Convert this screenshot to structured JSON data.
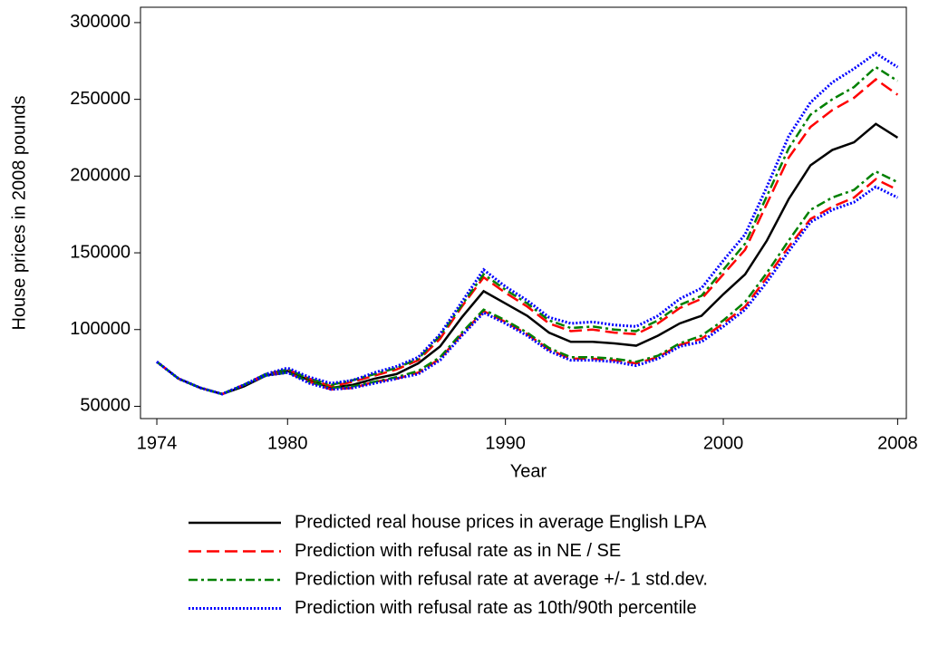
{
  "chart_data": {
    "type": "line",
    "xlabel": "Year",
    "ylabel": "House prices in 2008 pounds",
    "x": [
      1974,
      1975,
      1976,
      1977,
      1978,
      1979,
      1980,
      1981,
      1982,
      1983,
      1984,
      1985,
      1986,
      1987,
      1988,
      1989,
      1990,
      1991,
      1992,
      1993,
      1994,
      1995,
      1996,
      1997,
      1998,
      1999,
      2000,
      2001,
      2002,
      2003,
      2004,
      2005,
      2006,
      2007,
      2008
    ],
    "xlim": [
      1973.25,
      2008.4
    ],
    "xticks": [
      1974,
      1980,
      1990,
      2000,
      2008
    ],
    "ylim": [
      42000,
      310000
    ],
    "yticks": [
      50000,
      100000,
      150000,
      200000,
      250000,
      300000
    ],
    "series": [
      {
        "name": "Predicted real house prices in average English LPA",
        "color": "#000000",
        "dash": "none",
        "values": [
          79000,
          68000,
          62000,
          58000,
          63000,
          70000,
          73000,
          67000,
          62000,
          64000,
          68000,
          71000,
          78000,
          89000,
          108000,
          125000,
          117000,
          109000,
          98000,
          92000,
          92000,
          91000,
          89500,
          96000,
          104000,
          109000,
          123000,
          136000,
          158000,
          185000,
          207000,
          217000,
          222000,
          234000,
          225000
        ]
      },
      {
        "name": "Prediction with refusal rate as in NE / SE",
        "color": "#ff0000",
        "dash": "14,6",
        "upper": [
          79000,
          68000,
          62000,
          58000,
          64000,
          71000,
          74000,
          68000,
          63000,
          66000,
          70000,
          74000,
          80000,
          94000,
          115000,
          134000,
          124000,
          115000,
          104000,
          99000,
          100000,
          98000,
          97000,
          104000,
          114000,
          120000,
          136000,
          152000,
          182000,
          212000,
          232000,
          243000,
          251000,
          263000,
          253000
        ],
        "lower": [
          79000,
          68000,
          62000,
          58000,
          64000,
          70000,
          72000,
          66000,
          61000,
          62000,
          66000,
          68000,
          72000,
          81000,
          97000,
          112000,
          105000,
          97000,
          87000,
          81000,
          81000,
          80000,
          78000,
          82000,
          90000,
          94000,
          104000,
          115000,
          134000,
          154000,
          172000,
          180000,
          186000,
          198000,
          191000
        ]
      },
      {
        "name": "Prediction with refusal rate at average +/- 1 std.dev.",
        "color": "#008000",
        "dash": "10,4,3,4",
        "upper": [
          79000,
          68000,
          62000,
          58000,
          64000,
          71000,
          74000,
          68000,
          64000,
          67000,
          71000,
          75000,
          81000,
          96000,
          116000,
          136000,
          126000,
          117000,
          106000,
          101000,
          102000,
          100000,
          99000,
          106000,
          116000,
          122000,
          139000,
          156000,
          187000,
          218000,
          240000,
          250000,
          258000,
          271000,
          262000
        ],
        "lower": [
          79000,
          68000,
          62000,
          58000,
          64000,
          70000,
          72000,
          66000,
          62000,
          63000,
          66000,
          69000,
          73000,
          82000,
          98000,
          113000,
          106000,
          98000,
          88000,
          82000,
          82000,
          81000,
          79000,
          83000,
          91000,
          96000,
          106000,
          118000,
          137000,
          158000,
          178000,
          186000,
          191000,
          203000,
          196000
        ]
      },
      {
        "name": "Prediction with refusal rate as 10th/90th percentile",
        "color": "#0000ff",
        "dash": "2,2",
        "upper": [
          79000,
          68000,
          62000,
          58000,
          64000,
          71000,
          75000,
          69000,
          65000,
          67000,
          72000,
          76000,
          82000,
          97000,
          118000,
          139000,
          128000,
          119000,
          108000,
          104000,
          105000,
          103000,
          102000,
          109000,
          120000,
          127000,
          145000,
          162000,
          193000,
          226000,
          248000,
          261000,
          270000,
          280000,
          271000
        ],
        "lower": [
          79000,
          68000,
          62000,
          58000,
          64000,
          70000,
          72000,
          65000,
          61000,
          62000,
          65000,
          68000,
          71000,
          80000,
          96000,
          111000,
          104000,
          96000,
          86000,
          80000,
          80000,
          79000,
          76500,
          81000,
          89000,
          92000,
          102000,
          113000,
          131000,
          151000,
          170000,
          178000,
          183000,
          193000,
          186000
        ]
      }
    ]
  }
}
